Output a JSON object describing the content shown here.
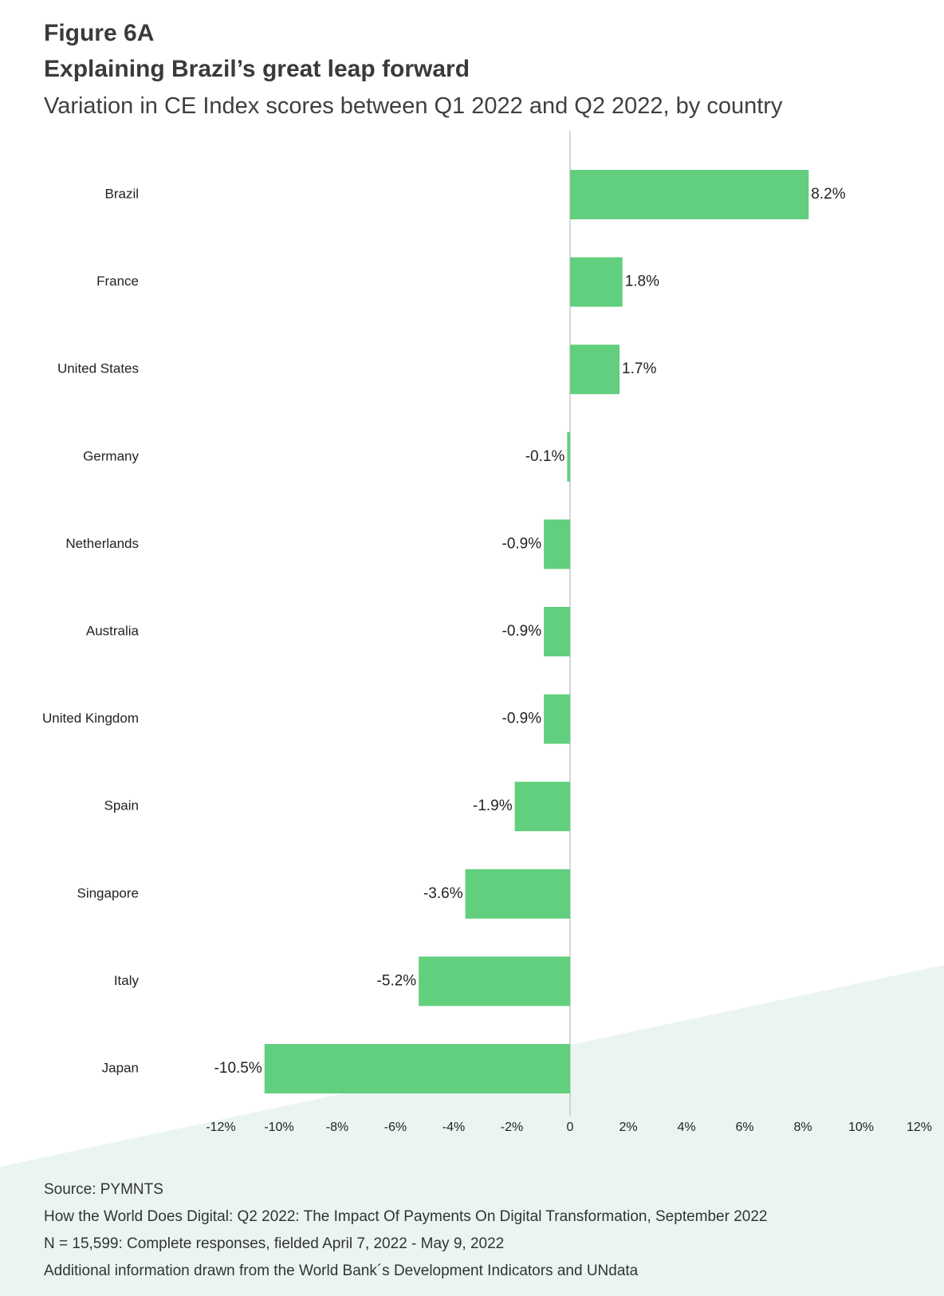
{
  "figure": {
    "label": "Figure 6A",
    "title": "Explaining Brazil’s great leap forward",
    "subtitle": "Variation in CE Index scores between Q1 2022 and Q2 2022, by country"
  },
  "colors": {
    "bar": "#61cf7d",
    "axis": "#c8c8c8",
    "background_shape": "#eaf5ef"
  },
  "chart_data": {
    "type": "bar",
    "orientation": "horizontal",
    "title": "Explaining Brazil’s great leap forward",
    "subtitle": "Variation in CE Index scores between Q1 2022 and Q2 2022, by country",
    "categories": [
      "Brazil",
      "France",
      "United States",
      "Germany",
      "Netherlands",
      "Australia",
      "United Kingdom",
      "Spain",
      "Singapore",
      "Italy",
      "Japan"
    ],
    "values": [
      8.2,
      1.8,
      1.7,
      -0.1,
      -0.9,
      -0.9,
      -0.9,
      -1.9,
      -3.6,
      -5.2,
      -10.5
    ],
    "value_labels": [
      "8.2%",
      "1.8%",
      "1.7%",
      "-0.1%",
      "-0.9%",
      "-0.9%",
      "-0.9%",
      "-1.9%",
      "-3.6%",
      "-5.2%",
      "-10.5%"
    ],
    "xlim": [
      -12,
      12
    ],
    "xticks": [
      -12,
      -10,
      -8,
      -6,
      -4,
      -2,
      0,
      2,
      4,
      6,
      8,
      10,
      12
    ],
    "xtick_labels": [
      "-12%",
      "-10%",
      "-8%",
      "-6%",
      "-4%",
      "-2%",
      "0",
      "2%",
      "4%",
      "6%",
      "8%",
      "10%",
      "12%"
    ],
    "xlabel": "",
    "ylabel": "",
    "grid": false,
    "legend": "none"
  },
  "footer": {
    "source": "Source: PYMNTS",
    "report": "How the World Does Digital: Q2 2022: The Impact Of Payments On Digital Transformation, September 2022",
    "sample": "N = 15,599: Complete responses, fielded April 7, 2022 - May 9, 2022",
    "note": "Additional information drawn from the World Bank´s  Development Indicators and UNdata"
  }
}
